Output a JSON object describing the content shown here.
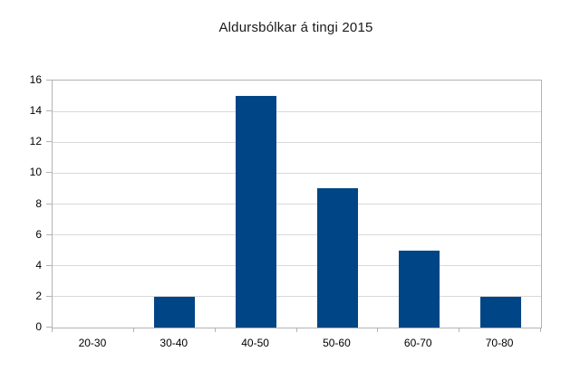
{
  "chart_data": {
    "type": "bar",
    "title": "Aldursbólkar á tingi 2015",
    "categories": [
      "20-30",
      "30-40",
      "40-50",
      "50-60",
      "60-70",
      "70-80"
    ],
    "values": [
      0,
      2,
      15,
      9,
      5,
      2
    ],
    "xlabel": "",
    "ylabel": "",
    "ylim": [
      0,
      16
    ],
    "yticks": [
      0,
      2,
      4,
      6,
      8,
      10,
      12,
      14,
      16
    ],
    "grid": true,
    "legend": false,
    "bar_color": "#004586",
    "gridline_color": "#d9d9d9",
    "axis_color": "#b3b3b3",
    "text_color": "#000000",
    "background_color": "#ffffff"
  }
}
